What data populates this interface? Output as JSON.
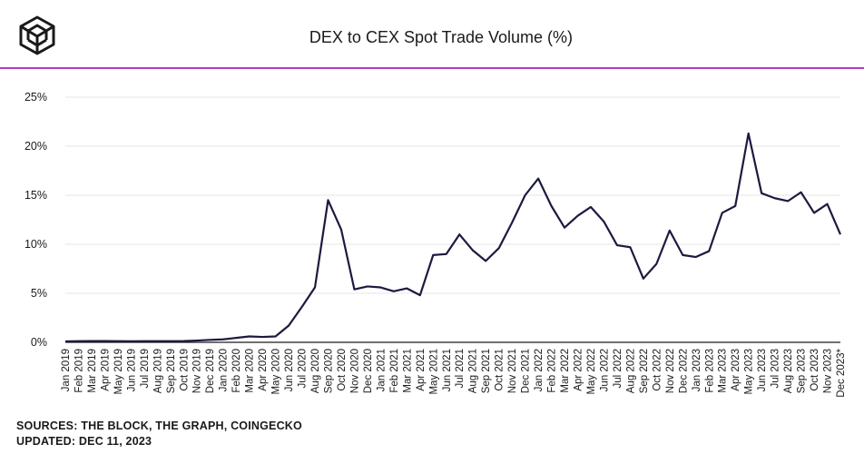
{
  "header": {
    "title": "DEX to CEX Spot Trade Volume (%)",
    "logo_icon": "cube-logo-icon",
    "accent_color": "#b03fbf"
  },
  "footer": {
    "sources": "SOURCES: THE BLOCK, THE GRAPH, COINGECKO",
    "updated": "UPDATED: DEC 11, 2023"
  },
  "chart_data": {
    "type": "line",
    "title": "DEX to CEX Spot Trade Volume (%)",
    "xlabel": "",
    "ylabel": "",
    "ylim": [
      0,
      25
    ],
    "yticks": [
      0,
      5,
      10,
      15,
      20,
      25
    ],
    "ytick_labels": [
      "0%",
      "5%",
      "10%",
      "15%",
      "20%",
      "25%"
    ],
    "grid": "horizontal",
    "line_color": "#1c1a3f",
    "categories": [
      "Jan 2019",
      "Feb 2019",
      "Mar 2019",
      "Apr 2019",
      "May 2019",
      "Jun 2019",
      "Jul 2019",
      "Aug 2019",
      "Sep 2019",
      "Oct 2019",
      "Nov 2019",
      "Dec 2019",
      "Jan 2020",
      "Feb 2020",
      "Mar 2020",
      "Apr 2020",
      "May 2020",
      "Jun 2020",
      "Jul 2020",
      "Aug 2020",
      "Sep 2020",
      "Oct 2020",
      "Nov 2020",
      "Dec 2020",
      "Jan 2021",
      "Feb 2021",
      "Mar 2021",
      "Apr 2021",
      "May 2021",
      "Jun 2021",
      "Jul 2021",
      "Aug 2021",
      "Sep 2021",
      "Oct 2021",
      "Nov 2021",
      "Dec 2021",
      "Jan 2022",
      "Feb 2022",
      "Mar 2022",
      "Apr 2022",
      "May 2022",
      "Jun 2022",
      "Jul 2022",
      "Aug 2022",
      "Sep 2022",
      "Oct 2022",
      "Nov 2022",
      "Dec 2022",
      "Jan 2023",
      "Feb 2023",
      "Mar 2023",
      "Apr 2023",
      "May 2023",
      "Jun 2023",
      "Jul 2023",
      "Aug 2023",
      "Sep 2023",
      "Oct 2023",
      "Nov 2023",
      "Dec 2023*"
    ],
    "series": [
      {
        "values": [
          0.1,
          0.12,
          0.13,
          0.13,
          0.12,
          0.11,
          0.12,
          0.12,
          0.12,
          0.13,
          0.18,
          0.25,
          0.3,
          0.45,
          0.6,
          0.55,
          0.6,
          1.7,
          3.6,
          5.6,
          14.5,
          11.5,
          5.4,
          5.7,
          5.6,
          5.2,
          5.5,
          4.8,
          8.9,
          9.0,
          11.0,
          9.4,
          8.3,
          9.6,
          12.2,
          15.0,
          16.7,
          13.9,
          11.7,
          12.9,
          13.8,
          12.3,
          9.9,
          9.7,
          6.5,
          8.0,
          11.4,
          8.9,
          8.7,
          9.3,
          13.2,
          13.9,
          21.3,
          15.2,
          14.7,
          14.4,
          15.3,
          13.2,
          14.1,
          11.0
        ]
      }
    ]
  }
}
